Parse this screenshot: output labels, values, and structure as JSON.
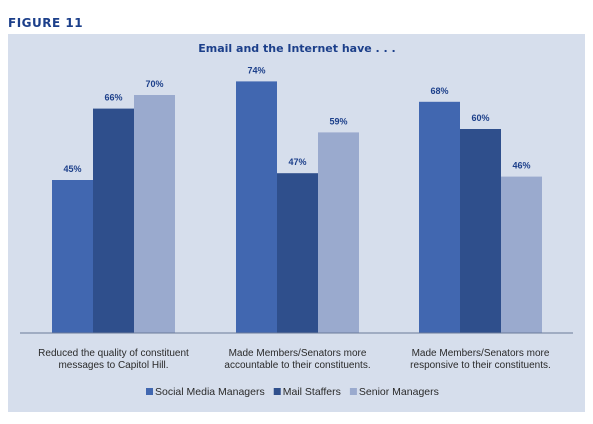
{
  "figure_label": "FIGURE 11",
  "chart_data": {
    "type": "bar",
    "title": "Email and the Internet have . . .",
    "categories": [
      [
        "Reduced the quality of constituent",
        "messages to Capitol Hill."
      ],
      [
        "Made Members/Senators more",
        "accountable to their constituents."
      ],
      [
        "Made Members/Senators more",
        "responsive to their constituents."
      ]
    ],
    "series": [
      {
        "name": "Social Media Managers",
        "color": "#4167b0",
        "values": [
          45,
          74,
          68
        ]
      },
      {
        "name": "Mail Staffers",
        "color": "#2f4f8c",
        "values": [
          66,
          47,
          60
        ]
      },
      {
        "name": "Senior Managers",
        "color": "#9aaace",
        "values": [
          70,
          59,
          46
        ]
      }
    ],
    "value_suffix": "%",
    "ylim": [
      0,
      85
    ],
    "grid": false,
    "legend_position": "bottom"
  }
}
